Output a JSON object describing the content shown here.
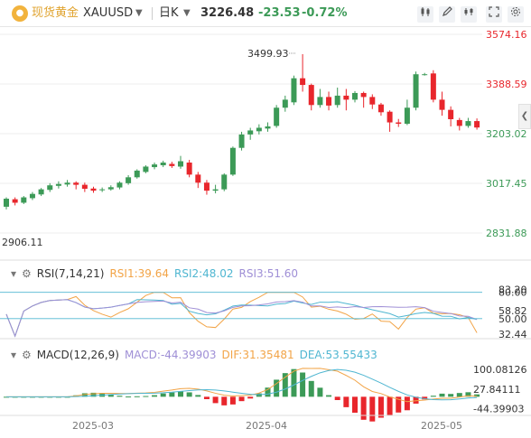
{
  "toolbar": {
    "symbol_name": "现货黄金",
    "symbol_code": "XAUUSD",
    "period": "日K",
    "last_price": "3226.48",
    "change": "-23.53",
    "change_pct": "-0.72%",
    "icons": [
      "gold-logo-icon",
      "candlestick-type-icon",
      "draw-icon",
      "indicator-icon",
      "fullscreen-icon",
      "settings-icon"
    ]
  },
  "colors": {
    "up": "#3c9a57",
    "down": "#e8262c",
    "accent": "#e0a32e",
    "rsi1": "#f2a447",
    "rsi2": "#4fb6d1",
    "rsi3": "#9f8fd6",
    "dif": "#f2a447",
    "dea": "#4fb6d1",
    "grid": "#eeeeee"
  },
  "chart_data": {
    "type": "candlestick",
    "price_axis": {
      "labels": [
        "3574.16",
        "3388.59",
        "3203.02",
        "3017.45",
        "2831.88"
      ],
      "values": [
        3574.16,
        3388.59,
        3203.02,
        3017.45,
        2831.88
      ]
    },
    "annotations": {
      "high_label": "3499.93",
      "low_label": "2906.11"
    },
    "date_labels": [
      "2025-03",
      "2025-04",
      "2025-05"
    ],
    "candles": [
      [
        2930,
        2960,
        2920,
        2965
      ],
      [
        2958,
        2945,
        2935,
        2965
      ],
      [
        2945,
        2965,
        2940,
        2970
      ],
      [
        2962,
        2978,
        2955,
        2985
      ],
      [
        2976,
        2995,
        2970,
        3000
      ],
      [
        2993,
        3010,
        2985,
        3018
      ],
      [
        3008,
        3015,
        2998,
        3025
      ],
      [
        3013,
        3020,
        3005,
        3030
      ],
      [
        3020,
        3012,
        2995,
        3025
      ],
      [
        3012,
        2997,
        2985,
        3020
      ],
      [
        2998,
        2990,
        2982,
        3005
      ],
      [
        2992,
        2995,
        2985,
        3002
      ],
      [
        2995,
        3003,
        2990,
        3010
      ],
      [
        3002,
        3020,
        2995,
        3025
      ],
      [
        3018,
        3040,
        3012,
        3048
      ],
      [
        3040,
        3065,
        3035,
        3070
      ],
      [
        3060,
        3080,
        3055,
        3085
      ],
      [
        3078,
        3088,
        3070,
        3095
      ],
      [
        3085,
        3095,
        3078,
        3102
      ],
      [
        3090,
        3082,
        3075,
        3098
      ],
      [
        3080,
        3100,
        3072,
        3120
      ],
      [
        3095,
        3050,
        3040,
        3105
      ],
      [
        3050,
        3020,
        3000,
        3060
      ],
      [
        3020,
        2990,
        2975,
        3030
      ],
      [
        2990,
        2995,
        2980,
        3012
      ],
      [
        2995,
        3050,
        2988,
        3055
      ],
      [
        3050,
        3150,
        3045,
        3155
      ],
      [
        3150,
        3200,
        3140,
        3210
      ],
      [
        3200,
        3215,
        3180,
        3225
      ],
      [
        3212,
        3225,
        3200,
        3238
      ],
      [
        3222,
        3230,
        3210,
        3245
      ],
      [
        3232,
        3300,
        3225,
        3310
      ],
      [
        3300,
        3330,
        3285,
        3345
      ],
      [
        3320,
        3410,
        3310,
        3420
      ],
      [
        3410,
        3385,
        3360,
        3500
      ],
      [
        3385,
        3310,
        3290,
        3390
      ],
      [
        3310,
        3340,
        3300,
        3370
      ],
      [
        3340,
        3308,
        3290,
        3360
      ],
      [
        3310,
        3345,
        3300,
        3375
      ],
      [
        3345,
        3330,
        3290,
        3370
      ],
      [
        3330,
        3355,
        3320,
        3362
      ],
      [
        3355,
        3340,
        3300,
        3360
      ],
      [
        3340,
        3312,
        3295,
        3350
      ],
      [
        3312,
        3283,
        3270,
        3318
      ],
      [
        3285,
        3245,
        3210,
        3290
      ],
      [
        3245,
        3240,
        3228,
        3258
      ],
      [
        3240,
        3300,
        3235,
        3330
      ],
      [
        3300,
        3425,
        3290,
        3435
      ],
      [
        3425,
        3425,
        3430,
        3420
      ],
      [
        3428,
        3330,
        3320,
        3440
      ],
      [
        3330,
        3292,
        3270,
        3360
      ],
      [
        3292,
        3257,
        3230,
        3305
      ],
      [
        3254,
        3232,
        3215,
        3262
      ],
      [
        3232,
        3250,
        3225,
        3262
      ],
      [
        3250,
        3226,
        3218,
        3260
      ]
    ],
    "rsi": {
      "legend": {
        "name": "RSI(7,14,21)",
        "rsi1": "RSI1:39.64",
        "rsi2": "RSI2:48.02",
        "rsi3": "RSI3:51.60"
      },
      "axis_labels": [
        "80.00",
        "83.20",
        "58.82",
        "50.00",
        "32.44"
      ],
      "axis_values": [
        80.0,
        83.2,
        58.82,
        50.0,
        32.44
      ],
      "ylim": [
        24,
        90
      ]
    },
    "macd": {
      "legend": {
        "name": "MACD(12,26,9)",
        "macd": "MACD:-44.39903",
        "dif": "DIF:31.35481",
        "dea": "DEA:53.55433"
      },
      "axis_labels": [
        "100.08126",
        "27.84111",
        "-44.39903"
      ],
      "axis_values": [
        100.08126,
        27.84111,
        -44.39903
      ],
      "ylim": [
        -62,
        124
      ]
    }
  }
}
